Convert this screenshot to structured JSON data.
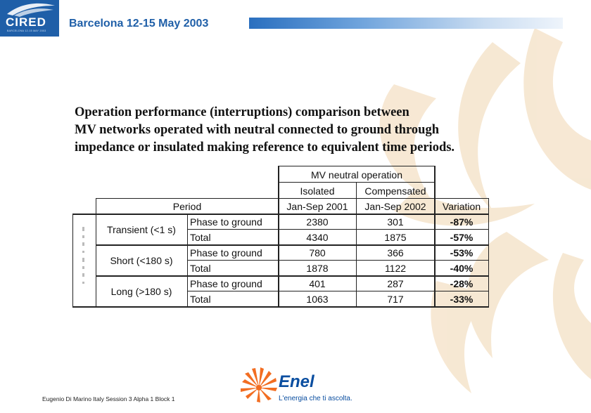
{
  "header": {
    "logo_text": "CIRED",
    "logo_subtext": "BARCELONA 12-15 MAY 2003",
    "title": "Barcelona 12-15 May 2003"
  },
  "heading": {
    "line1": "Operation performance (interruptions) comparison between",
    "line2": "MV networks operated with neutral connected to ground through",
    "line3": "impedance or insulated making reference to equivalent time periods."
  },
  "table": {
    "group_header": "MV neutral operation",
    "col_isolated": "Isolated",
    "col_compensated": "Compensated",
    "col_period": "Period",
    "col_isolated_period": "Jan-Sep 2001",
    "col_compensated_period": "Jan-Sep 2002",
    "col_variation": "Variation",
    "groups": [
      {
        "name": "Transient (<1 s)",
        "rows": [
          {
            "type": "Phase to ground",
            "isolated": "2380",
            "compensated": "301",
            "variation": "-87%"
          },
          {
            "type": "Total",
            "isolated": "4340",
            "compensated": "1875",
            "variation": "-57%"
          }
        ]
      },
      {
        "name": "Short (<180 s)",
        "rows": [
          {
            "type": "Phase to ground",
            "isolated": "780",
            "compensated": "366",
            "variation": "-53%"
          },
          {
            "type": "Total",
            "isolated": "1878",
            "compensated": "1122",
            "variation": "-40%"
          }
        ]
      },
      {
        "name": "Long (>180 s)",
        "rows": [
          {
            "type": "Phase to ground",
            "isolated": "401",
            "compensated": "287",
            "variation": "-28%"
          },
          {
            "type": "Total",
            "isolated": "1063",
            "compensated": "717",
            "variation": "-33%"
          }
        ]
      }
    ]
  },
  "footer": {
    "text": "Eugenio Di Marino Italy Session 3 Alpha 1 Block 1"
  },
  "brand": {
    "name": "Enel",
    "tagline": "L'energia che ti ascolta.",
    "logo_icon": "enel-sun-icon"
  },
  "colors": {
    "cired_blue": "#1f5fa8",
    "enel_blue": "#0a4ea0",
    "enel_orange": "#f26d21",
    "background_art": "#f6e6cf"
  }
}
